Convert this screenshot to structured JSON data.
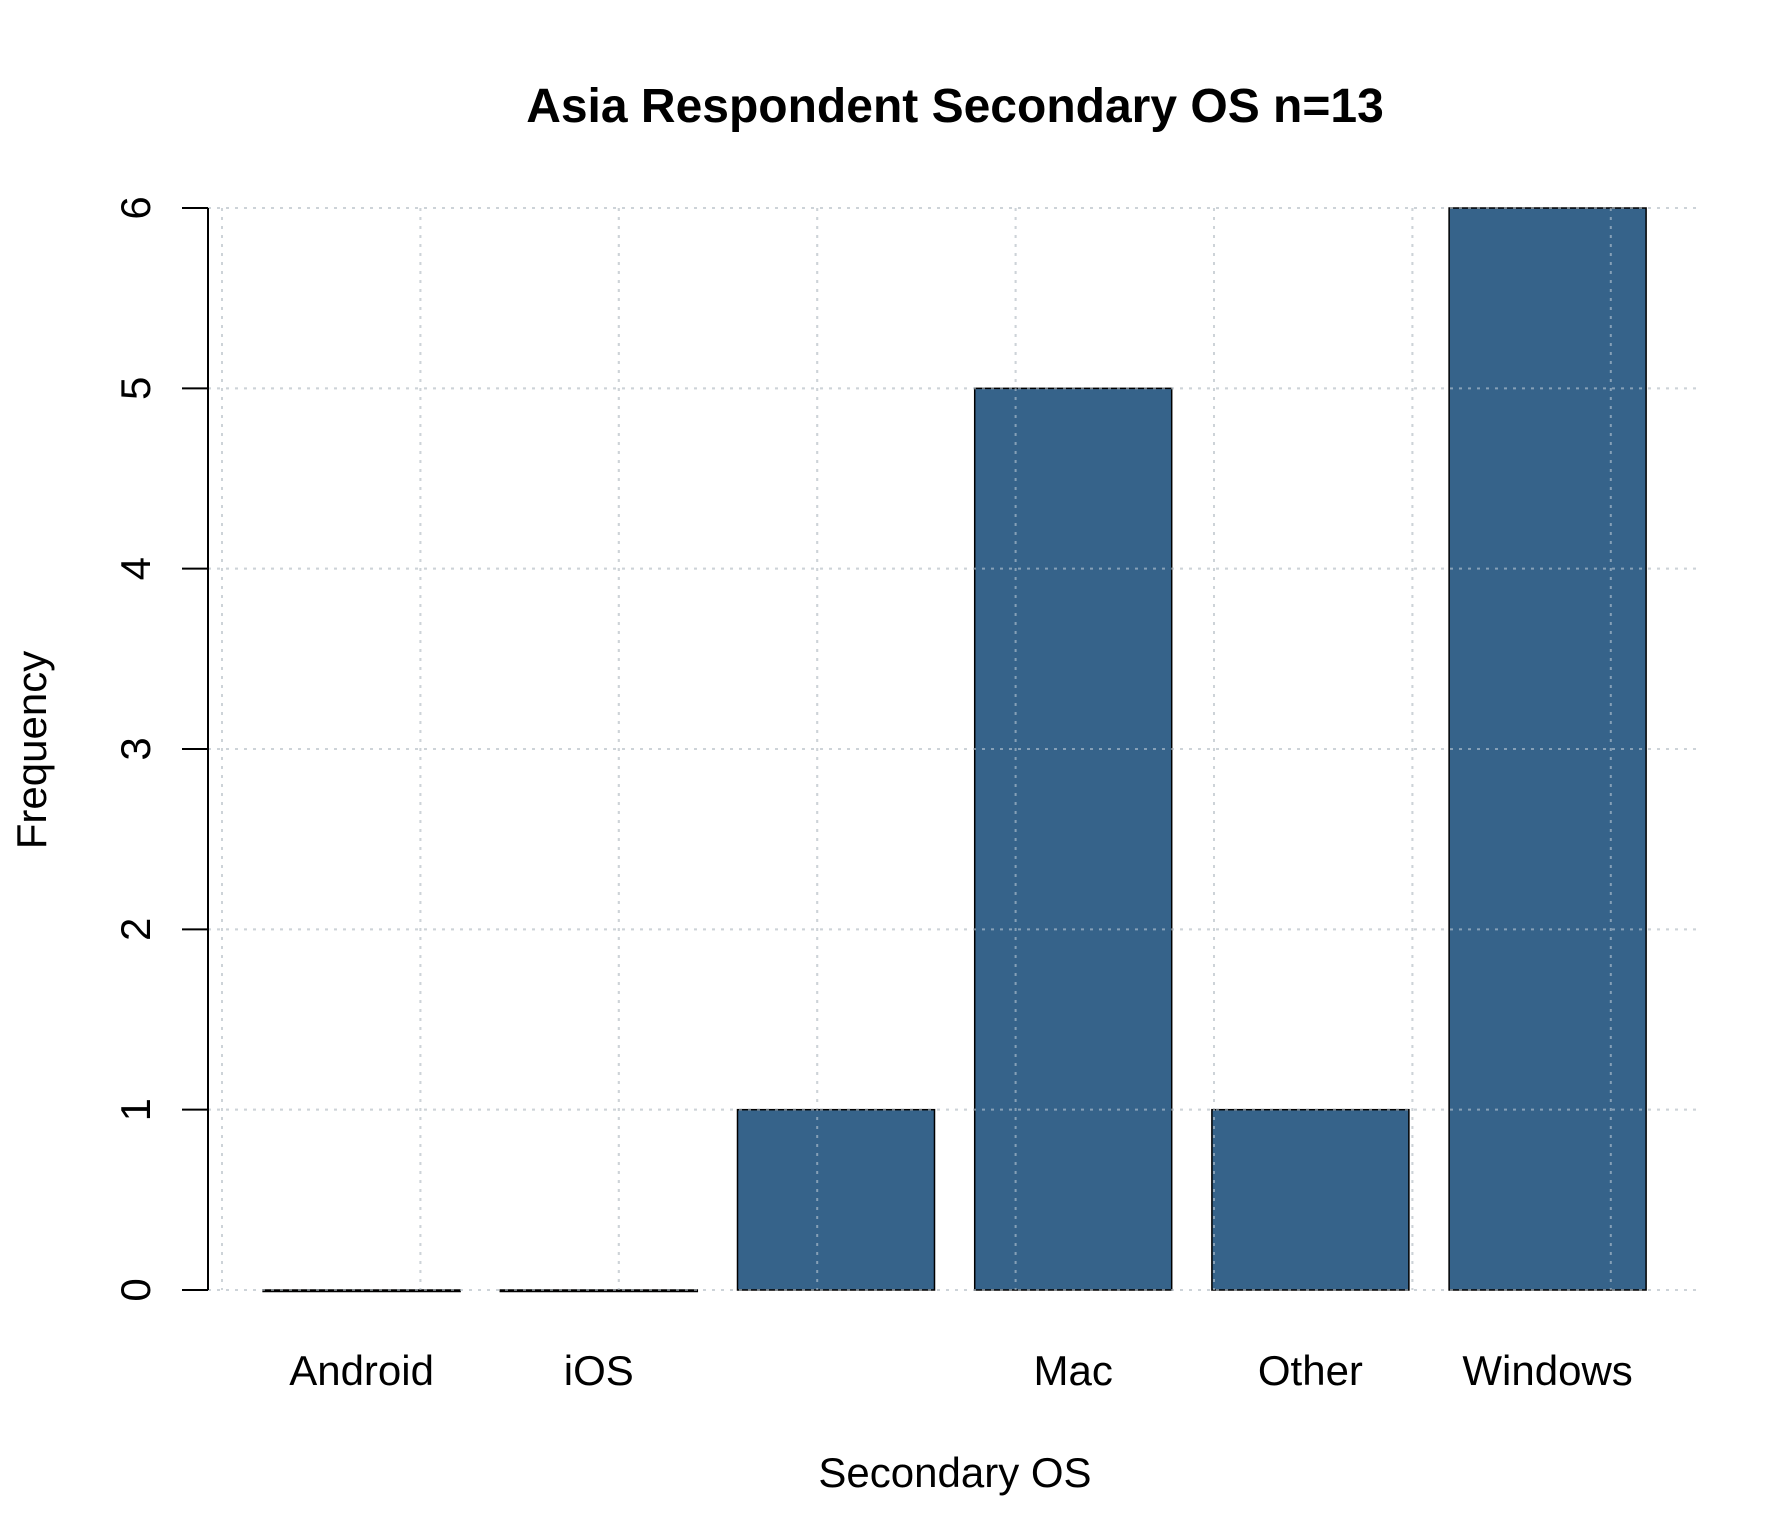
{
  "chart_data": {
    "type": "bar",
    "title": "Asia Respondent Secondary OS n=13",
    "xlabel": "Secondary OS",
    "ylabel": "Frequency",
    "categories": [
      "Android",
      "iOS",
      "",
      "Mac",
      "Other",
      "Windows"
    ],
    "values": [
      0,
      0,
      1,
      5,
      1,
      6
    ],
    "ylim": [
      0,
      6
    ],
    "yticks": [
      "0",
      "1",
      "2",
      "3",
      "4",
      "5",
      "6"
    ],
    "grid": true,
    "bar_color": "#36638a"
  }
}
